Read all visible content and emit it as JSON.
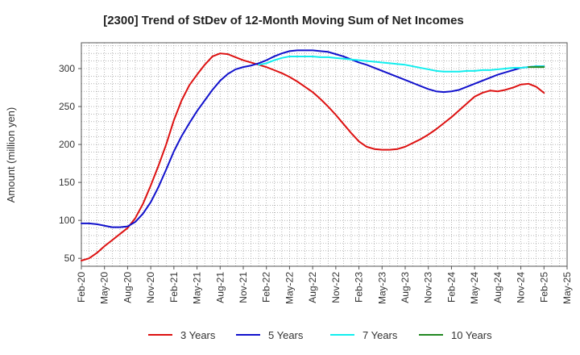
{
  "chart_data": {
    "type": "line",
    "title": "[2300]  Trend of StDev of 12-Month Moving Sum of Net Incomes",
    "xlabel": "",
    "ylabel": "Amount (million yen)",
    "x_ticks": [
      "Feb-20",
      "May-20",
      "Aug-20",
      "Nov-20",
      "Feb-21",
      "May-21",
      "Aug-21",
      "Nov-21",
      "Feb-22",
      "May-22",
      "Aug-22",
      "Nov-22",
      "Feb-23",
      "May-23",
      "Aug-23",
      "Nov-23",
      "Feb-24",
      "May-24",
      "Aug-24",
      "Nov-24",
      "Feb-25",
      "May-25"
    ],
    "y_ticks": [
      50,
      100,
      150,
      200,
      250,
      300
    ],
    "ylim": [
      40,
      335
    ],
    "grid": true,
    "legend_position": "bottom",
    "series": [
      {
        "name": "3 Years",
        "color": "#dd1111",
        "x": [
          "Feb-20",
          "Mar-20",
          "Apr-20",
          "May-20",
          "Jun-20",
          "Jul-20",
          "Aug-20",
          "Sep-20",
          "Oct-20",
          "Nov-20",
          "Dec-20",
          "Jan-21",
          "Feb-21",
          "Mar-21",
          "Apr-21",
          "May-21",
          "Jun-21",
          "Jul-21",
          "Aug-21",
          "Sep-21",
          "Oct-21",
          "Nov-21",
          "Dec-21",
          "Jan-22",
          "Feb-22",
          "Mar-22",
          "Apr-22",
          "May-22",
          "Jun-22",
          "Jul-22",
          "Aug-22",
          "Sep-22",
          "Oct-22",
          "Nov-22",
          "Dec-22",
          "Jan-23",
          "Feb-23",
          "Mar-23",
          "Apr-23",
          "May-23",
          "Jun-23",
          "Jul-23",
          "Aug-23",
          "Sep-23",
          "Oct-23",
          "Nov-23",
          "Dec-23",
          "Jan-24",
          "Feb-24",
          "Mar-24",
          "Apr-24",
          "May-24",
          "Jun-24",
          "Jul-24",
          "Aug-24",
          "Sep-24",
          "Oct-24",
          "Nov-24",
          "Dec-24",
          "Jan-25",
          "Feb-25"
        ],
        "values": [
          47,
          50,
          57,
          66,
          74,
          82,
          90,
          103,
          122,
          146,
          172,
          200,
          232,
          258,
          278,
          292,
          305,
          316,
          320,
          319,
          315,
          311,
          308,
          305,
          302,
          298,
          294,
          289,
          283,
          276,
          269,
          260,
          250,
          239,
          227,
          215,
          204,
          197,
          194,
          193,
          193,
          194,
          197,
          202,
          207,
          213,
          220,
          228,
          236,
          245,
          254,
          263,
          268,
          271,
          270,
          272,
          275,
          279,
          280,
          276,
          268
        ]
      },
      {
        "name": "5 Years",
        "color": "#1111cc",
        "x": [
          "Feb-20",
          "Mar-20",
          "Apr-20",
          "May-20",
          "Jun-20",
          "Jul-20",
          "Aug-20",
          "Sep-20",
          "Oct-20",
          "Nov-20",
          "Dec-20",
          "Jan-21",
          "Feb-21",
          "Mar-21",
          "Apr-21",
          "May-21",
          "Jun-21",
          "Jul-21",
          "Aug-21",
          "Sep-21",
          "Oct-21",
          "Nov-21",
          "Dec-21",
          "Jan-22",
          "Feb-22",
          "Mar-22",
          "Apr-22",
          "May-22",
          "Jun-22",
          "Jul-22",
          "Aug-22",
          "Sep-22",
          "Oct-22",
          "Nov-22",
          "Dec-22",
          "Jan-23",
          "Feb-23",
          "Mar-23",
          "Apr-23",
          "May-23",
          "Jun-23",
          "Jul-23",
          "Aug-23",
          "Sep-23",
          "Oct-23",
          "Nov-23",
          "Dec-23",
          "Jan-24",
          "Feb-24",
          "Mar-24",
          "Apr-24",
          "May-24",
          "Jun-24",
          "Jul-24",
          "Aug-24",
          "Sep-24",
          "Oct-24",
          "Nov-24",
          "Dec-24",
          "Jan-25",
          "Feb-25"
        ],
        "values": [
          96,
          96,
          95,
          93,
          91,
          91,
          92,
          98,
          109,
          124,
          144,
          167,
          191,
          211,
          228,
          244,
          258,
          272,
          284,
          293,
          299,
          302,
          304,
          307,
          311,
          316,
          320,
          323,
          324,
          324,
          324,
          323,
          322,
          319,
          316,
          312,
          308,
          305,
          301,
          297,
          293,
          289,
          285,
          281,
          277,
          273,
          270,
          269,
          270,
          272,
          276,
          280,
          284,
          288,
          292,
          295,
          298,
          301,
          302,
          303,
          303
        ]
      },
      {
        "name": "7 Years",
        "color": "#11eeee",
        "x": [
          "Jan-22",
          "Feb-22",
          "Mar-22",
          "Apr-22",
          "May-22",
          "Jun-22",
          "Jul-22",
          "Aug-22",
          "Sep-22",
          "Oct-22",
          "Nov-22",
          "Dec-22",
          "Jan-23",
          "Feb-23",
          "Mar-23",
          "Apr-23",
          "May-23",
          "Jun-23",
          "Jul-23",
          "Aug-23",
          "Sep-23",
          "Oct-23",
          "Nov-23",
          "Dec-23",
          "Jan-24",
          "Feb-24",
          "Mar-24",
          "Apr-24",
          "May-24",
          "Jun-24",
          "Jul-24",
          "Aug-24",
          "Sep-24",
          "Oct-24",
          "Nov-24",
          "Dec-24",
          "Jan-25",
          "Feb-25"
        ],
        "values": [
          305,
          307,
          311,
          314,
          316,
          316,
          316,
          316,
          315,
          315,
          314,
          313,
          312,
          311,
          310,
          309,
          308,
          307,
          306,
          305,
          303,
          301,
          299,
          297,
          296,
          296,
          296,
          297,
          297,
          298,
          298,
          299,
          300,
          301,
          301,
          302,
          303,
          303
        ]
      },
      {
        "name": "10 Years",
        "color": "#228822",
        "x": [
          "Dec-24",
          "Jan-25",
          "Feb-25"
        ],
        "values": [
          302,
          302,
          302
        ]
      }
    ]
  }
}
